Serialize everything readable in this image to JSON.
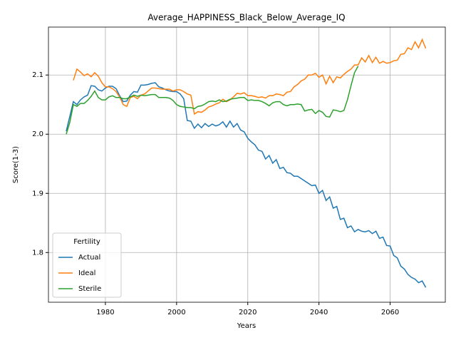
{
  "chart_data": {
    "type": "line",
    "title": "Average_HAPPINESS_Black_Below_Average_IQ",
    "xlabel": "Years",
    "ylabel": "Score(1-3)",
    "legend_title": "Fertility",
    "legend": "lower left",
    "grid": true,
    "xlim": [
      1964,
      2075.5
    ],
    "ylim": [
      1.716,
      2.181
    ],
    "xticks": [
      1980,
      2000,
      2020,
      2040,
      2060
    ],
    "yticks": [
      1.8,
      1.9,
      {
        "value": 2.0,
        "label": "2.0"
      },
      2.1
    ],
    "x": [
      1969,
      1970,
      1971,
      1972,
      1973,
      1974,
      1975,
      1976,
      1977,
      1978,
      1979,
      1980,
      1981,
      1982,
      1983,
      1984,
      1985,
      1986,
      1987,
      1988,
      1989,
      1990,
      1991,
      1992,
      1993,
      1994,
      1995,
      1996,
      1997,
      1998,
      1999,
      2000,
      2001,
      2002,
      2003,
      2004,
      2005,
      2006,
      2007,
      2008,
      2009,
      2010,
      2011,
      2012,
      2013,
      2014,
      2015,
      2016,
      2017,
      2018,
      2019,
      2020,
      2021,
      2022,
      2023,
      2024,
      2025,
      2026,
      2027,
      2028,
      2029,
      2030,
      2031,
      2032,
      2033,
      2034,
      2035,
      2036,
      2037,
      2038,
      2039,
      2040,
      2041,
      2042,
      2043,
      2044,
      2045,
      2046,
      2047,
      2048,
      2049,
      2050,
      2051,
      2052,
      2053,
      2054,
      2055,
      2056,
      2057,
      2058,
      2059,
      2060,
      2061,
      2062,
      2063,
      2064,
      2065,
      2066,
      2067,
      2068,
      2069,
      2070
    ],
    "series": [
      {
        "name": "Actual",
        "color": "#1f77b4",
        "values": [
          2.005,
          2.03,
          2.055,
          2.05,
          2.058,
          2.063,
          2.066,
          2.082,
          2.081,
          2.075,
          2.073,
          2.078,
          2.081,
          2.081,
          2.077,
          2.065,
          2.055,
          2.056,
          2.066,
          2.072,
          2.071,
          2.083,
          2.083,
          2.084,
          2.086,
          2.087,
          2.08,
          2.078,
          2.075,
          2.073,
          2.072,
          2.072,
          2.068,
          2.06,
          2.023,
          2.022,
          2.01,
          2.017,
          2.011,
          2.018,
          2.013,
          2.017,
          2.014,
          2.016,
          2.021,
          2.012,
          2.022,
          2.012,
          2.018,
          2.007,
          2.004,
          1.993,
          1.987,
          1.982,
          1.973,
          1.971,
          1.958,
          1.964,
          1.951,
          1.957,
          1.942,
          1.944,
          1.935,
          1.934,
          1.929,
          1.929,
          1.925,
          1.921,
          1.917,
          1.913,
          1.914,
          1.9,
          1.905,
          1.888,
          1.894,
          1.875,
          1.878,
          1.856,
          1.858,
          1.842,
          1.845,
          1.835,
          1.839,
          1.836,
          1.835,
          1.837,
          1.832,
          1.836,
          1.824,
          1.826,
          1.812,
          1.811,
          1.795,
          1.791,
          1.777,
          1.772,
          1.763,
          1.758,
          1.755,
          1.749,
          1.752,
          1.741
        ]
      },
      {
        "name": "Ideal",
        "color": "#ff7f0e",
        "values": [
          null,
          null,
          2.091,
          2.11,
          2.105,
          2.099,
          2.102,
          2.097,
          2.104,
          2.098,
          2.087,
          2.08,
          2.08,
          2.077,
          2.072,
          2.063,
          2.05,
          2.047,
          2.062,
          2.064,
          2.06,
          2.066,
          2.068,
          2.073,
          2.078,
          2.078,
          2.077,
          2.076,
          2.076,
          2.076,
          2.073,
          2.075,
          2.075,
          2.072,
          2.068,
          2.066,
          2.034,
          2.038,
          2.037,
          2.041,
          2.046,
          2.048,
          2.051,
          2.053,
          2.059,
          2.055,
          2.058,
          2.063,
          2.069,
          2.068,
          2.07,
          2.065,
          2.065,
          2.064,
          2.062,
          2.063,
          2.061,
          2.065,
          2.065,
          2.068,
          2.067,
          2.065,
          2.071,
          2.072,
          2.08,
          2.084,
          2.09,
          2.093,
          2.1,
          2.1,
          2.103,
          2.096,
          2.1,
          2.085,
          2.098,
          2.087,
          2.097,
          2.095,
          2.101,
          2.106,
          2.11,
          2.117,
          2.117,
          2.129,
          2.122,
          2.133,
          2.121,
          2.13,
          2.12,
          2.123,
          2.12,
          2.121,
          2.124,
          2.125,
          2.135,
          2.136,
          2.146,
          2.143,
          2.156,
          2.146,
          2.16,
          2.145
        ]
      },
      {
        "name": "Sterile",
        "color": "#2ca02c",
        "values": [
          2.0,
          2.02,
          2.05,
          2.047,
          2.052,
          2.052,
          2.057,
          2.064,
          2.073,
          2.062,
          2.058,
          2.058,
          2.063,
          2.065,
          2.062,
          2.062,
          2.06,
          2.06,
          2.063,
          2.066,
          2.064,
          2.066,
          2.065,
          2.066,
          2.067,
          2.067,
          2.062,
          2.062,
          2.062,
          2.061,
          2.057,
          2.05,
          2.047,
          2.046,
          2.045,
          2.045,
          2.043,
          2.047,
          2.048,
          2.051,
          2.055,
          2.056,
          2.055,
          2.058,
          2.055,
          2.056,
          2.059,
          2.06,
          2.061,
          2.062,
          2.062,
          2.057,
          2.058,
          2.057,
          2.057,
          2.055,
          2.052,
          2.048,
          2.053,
          2.055,
          2.055,
          2.05,
          2.048,
          2.05,
          2.05,
          2.051,
          2.05,
          2.039,
          2.041,
          2.042,
          2.035,
          2.04,
          2.037,
          2.03,
          2.029,
          2.041,
          2.04,
          2.038,
          2.04,
          2.058,
          2.082,
          2.104,
          2.115,
          null,
          null,
          null,
          null,
          null,
          null,
          null,
          null,
          null,
          null,
          null,
          null,
          null,
          null,
          null,
          null,
          null,
          null,
          null
        ]
      }
    ]
  }
}
